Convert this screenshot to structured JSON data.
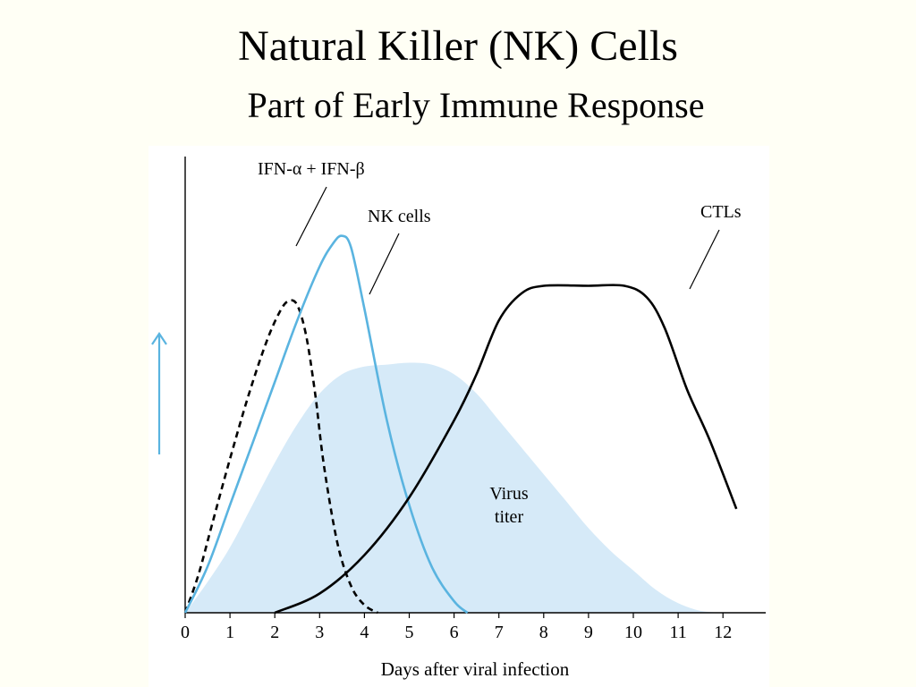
{
  "slide": {
    "title": "Natural Killer (NK) Cells",
    "subtitle": "Part of Early Immune Response"
  },
  "colors": {
    "background": "#fffff5",
    "virus_fill": "#d6eaf8",
    "nk_line": "#5ab4e0",
    "ifn_line": "#000000",
    "ctl_line": "#000000",
    "arrow": "#5ab4e0"
  },
  "chart_data": {
    "type": "line",
    "title": "",
    "xlabel": "Days after viral infection",
    "ylabel": "",
    "xlim": [
      0,
      13
    ],
    "ylim": [
      0,
      1.05
    ],
    "x_ticks": [
      0,
      1,
      2,
      3,
      4,
      5,
      6,
      7,
      8,
      9,
      10,
      11,
      12
    ],
    "yaxis_marker": "up-arrow",
    "series": [
      {
        "name": "Virus titer",
        "style": "filled-area",
        "x": [
          0,
          0.5,
          1,
          1.5,
          2,
          2.5,
          3,
          3.5,
          4,
          4.5,
          5,
          5.5,
          6,
          6.5,
          7,
          7.5,
          8,
          8.5,
          9,
          9.5,
          10,
          10.5,
          11,
          11.5,
          12
        ],
        "y": [
          0,
          0.08,
          0.17,
          0.28,
          0.39,
          0.49,
          0.57,
          0.62,
          0.64,
          0.645,
          0.65,
          0.645,
          0.62,
          0.57,
          0.5,
          0.43,
          0.36,
          0.29,
          0.22,
          0.16,
          0.11,
          0.06,
          0.025,
          0.005,
          0
        ]
      },
      {
        "name": "IFN-α + IFN-β",
        "style": "dashed",
        "x": [
          0,
          0.3,
          0.6,
          1,
          1.4,
          1.8,
          2.1,
          2.3,
          2.5,
          2.7,
          2.9,
          3.1,
          3.4,
          3.7,
          4,
          4.3
        ],
        "y": [
          0,
          0.1,
          0.23,
          0.4,
          0.56,
          0.7,
          0.78,
          0.81,
          0.8,
          0.72,
          0.57,
          0.38,
          0.18,
          0.07,
          0.02,
          0
        ]
      },
      {
        "name": "NK cells",
        "style": "solid",
        "x": [
          0,
          0.5,
          1,
          1.5,
          2,
          2.5,
          3,
          3.3,
          3.5,
          3.7,
          4,
          4.5,
          5,
          5.5,
          6,
          6.3
        ],
        "y": [
          0,
          0.12,
          0.28,
          0.44,
          0.6,
          0.76,
          0.9,
          0.96,
          0.98,
          0.95,
          0.79,
          0.5,
          0.28,
          0.12,
          0.03,
          0
        ]
      },
      {
        "name": "CTLs",
        "style": "solid",
        "x": [
          2,
          3,
          4,
          5,
          6,
          6.5,
          7,
          7.5,
          8,
          9,
          9.8,
          10.3,
          10.7,
          11.2,
          11.7,
          12.3
        ],
        "y": [
          0,
          0.05,
          0.15,
          0.3,
          0.5,
          0.62,
          0.76,
          0.83,
          0.85,
          0.85,
          0.85,
          0.82,
          0.74,
          0.58,
          0.45,
          0.27
        ]
      }
    ],
    "annotations": [
      {
        "text": "IFN-α + IFN-β",
        "series": "IFN-α + IFN-β"
      },
      {
        "text": "NK cells",
        "series": "NK cells"
      },
      {
        "text": "CTLs",
        "series": "CTLs"
      },
      {
        "text": "Virus",
        "series": "Virus titer"
      },
      {
        "text": "titer",
        "series": "Virus titer"
      }
    ]
  }
}
